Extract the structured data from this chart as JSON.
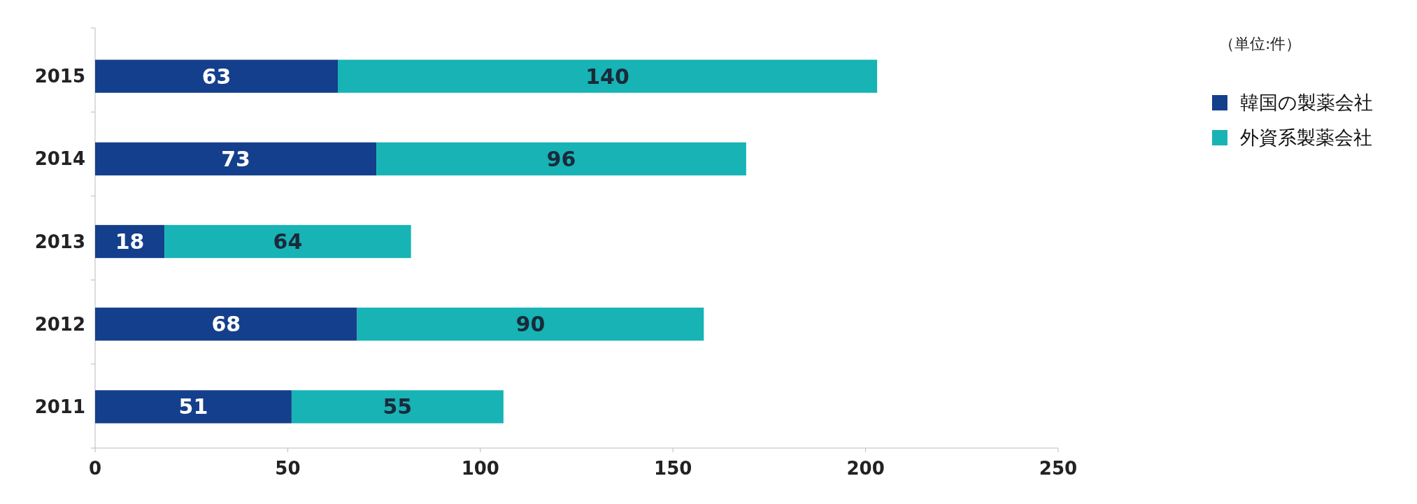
{
  "chart_data": {
    "type": "bar",
    "orientation": "horizontal",
    "stacked": true,
    "categories": [
      "2015",
      "2014",
      "2013",
      "2012",
      "2011"
    ],
    "series": [
      {
        "name": "韓国の製薬会社",
        "color": "#143f8c",
        "values": [
          63,
          73,
          18,
          68,
          51
        ]
      },
      {
        "name": "外資系製薬会社",
        "color": "#17b3b5",
        "values": [
          140,
          96,
          64,
          90,
          55
        ]
      }
    ],
    "xlim": [
      0,
      250
    ],
    "xticks": [
      0,
      50,
      100,
      150,
      200,
      250
    ],
    "data_labels": true,
    "legend": "top right",
    "grid": false,
    "annotations": [
      "（単位:件）"
    ]
  }
}
